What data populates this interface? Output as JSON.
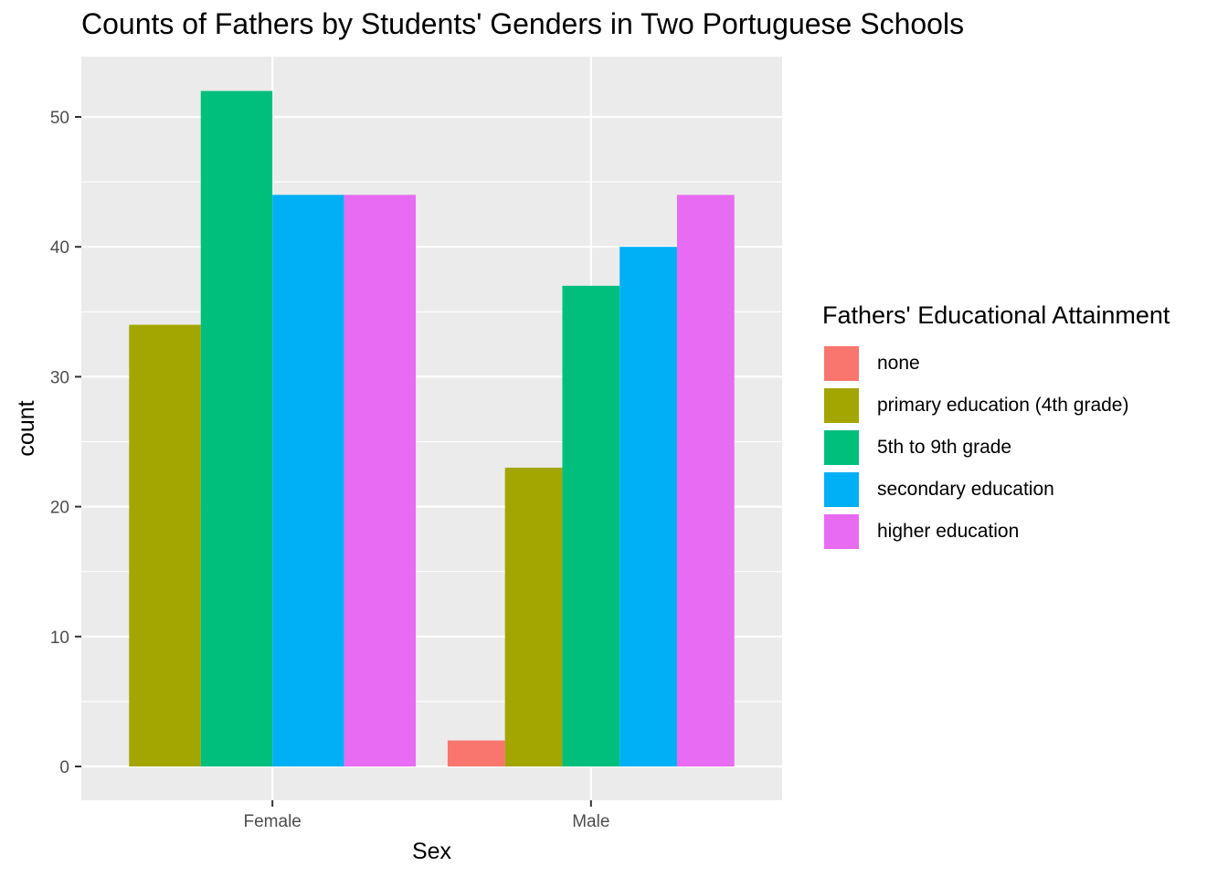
{
  "chart_data": {
    "type": "bar",
    "title": "Counts of Fathers by Students' Genders in Two Portuguese Schools",
    "xlabel": "Sex",
    "ylabel": "count",
    "categories": [
      "Female",
      "Male"
    ],
    "ylim": [
      0,
      55
    ],
    "yticks": [
      0,
      10,
      20,
      30,
      40,
      50
    ],
    "grid": true,
    "legend_title": "Fathers' Educational Attainment",
    "legend_position": "right",
    "series": [
      {
        "name": "none",
        "color": "#F8766D",
        "values": [
          0,
          2
        ]
      },
      {
        "name": "primary education (4th grade)",
        "color": "#A3A500",
        "values": [
          34,
          23
        ]
      },
      {
        "name": "5th to 9th grade",
        "color": "#00BF7D",
        "values": [
          52,
          37
        ]
      },
      {
        "name": "secondary education",
        "color": "#00B0F6",
        "values": [
          44,
          40
        ]
      },
      {
        "name": "higher education",
        "color": "#E76BF3",
        "values": [
          44,
          44
        ]
      }
    ]
  }
}
